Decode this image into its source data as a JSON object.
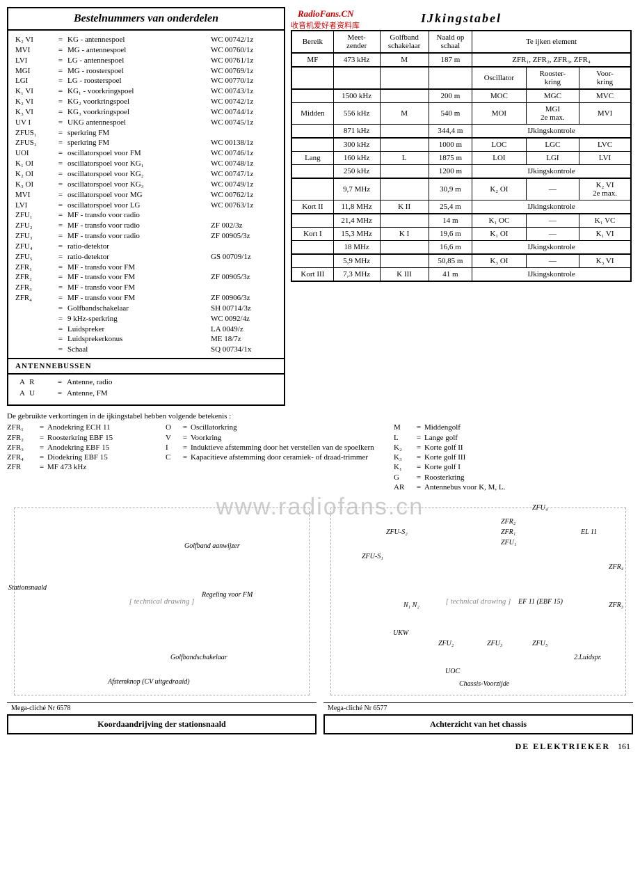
{
  "left": {
    "title": "Bestelnummers van onderdelen",
    "rows": [
      {
        "c1": "K₂ VI",
        "c2": "KG - antennespoel",
        "c3": "WC 00742/1z"
      },
      {
        "c1": "MVI",
        "c2": "MG - antennespoel",
        "c3": "WC 00760/1z"
      },
      {
        "c1": "LVI",
        "c2": "LG - antennespoel",
        "c3": "WC 00761/1z"
      },
      {
        "c1": "MGI",
        "c2": "MG - roosterspoel",
        "c3": "WC 00769/1z"
      },
      {
        "c1": "LGI",
        "c2": "LG - roosterspoel",
        "c3": "WC 00770/1z"
      },
      {
        "c1": "K₁ VI",
        "c2": "KG₁ - voorkringspoel",
        "c3": "WC 00743/1z"
      },
      {
        "c1": "K₂ VI",
        "c2": "KG₂  voorkringspoel",
        "c3": "WC 00742/1z"
      },
      {
        "c1": "K₃ VI",
        "c2": "KG₃  voorkringspoel",
        "c3": "WC 00744/1z"
      },
      {
        "c1": "UV I",
        "c2": "UKG  antennespoel",
        "c3": "WC 00745/1z"
      },
      {
        "c1": "ZFUS₁",
        "c2": "sperkring  FM",
        "c3": ""
      },
      {
        "c1": "ZFUS₂",
        "c2": "sperkring  FM",
        "c3": "WC 00138/1z"
      },
      {
        "c1": "UOI",
        "c2": "oscillatorspoel  voor FM",
        "c3": "WC 00746/1z"
      },
      {
        "c1": "K₁ OI",
        "c2": "oscillatorspoel  voor KG₁",
        "c3": "WC 00748/1z"
      },
      {
        "c1": "K₂ OI",
        "c2": "oscillatorspoel  voor KG₂",
        "c3": "WC 00747/1z"
      },
      {
        "c1": "K₃ OI",
        "c2": "oscillatorspoel  voor KG₃",
        "c3": "WC 00749/1z"
      },
      {
        "c1": "MVI",
        "c2": "oscillatorspoel  voor MG",
        "c3": "WC 00762/1z"
      },
      {
        "c1": "LVI",
        "c2": "oscillatorspoel  voor LG",
        "c3": "WC 00763/1z"
      },
      {
        "c1": "ZFU₁",
        "c2": "MF - transfo voor radio",
        "c3": ""
      },
      {
        "c1": "ZFU₂",
        "c2": "MF - transfo voor radio",
        "c3": "ZF    002/3z"
      },
      {
        "c1": "ZFU₃",
        "c2": "MF - transfo voor radio",
        "c3": "ZF 00905/3z"
      },
      {
        "c1": "ZFU₄",
        "c2": "ratio-detektor",
        "c3": ""
      },
      {
        "c1": "ZFU₅",
        "c2": "ratio-detektor",
        "c3": "GS 00709/1z"
      },
      {
        "c1": "ZFR₁",
        "c2": "MF - transfo voor FM",
        "c3": ""
      },
      {
        "c1": "ZFR₂",
        "c2": "MF - transfo voor FM",
        "c3": "ZF 00905/3z"
      },
      {
        "c1": "ZFR₃",
        "c2": "MF - transfo voor FM",
        "c3": ""
      },
      {
        "c1": "ZFR₄",
        "c2": "MF - transfo voor FM",
        "c3": "ZF 00906/3z"
      },
      {
        "c1": "",
        "c2": "Golfbandschakelaar",
        "c3": "SH 00714/3z"
      },
      {
        "c1": "",
        "c2": "9  kHz-sperkring",
        "c3": "WC  0092/4z"
      },
      {
        "c1": "",
        "c2": "Luidspreker",
        "c3": "LA  0049/z"
      },
      {
        "c1": "",
        "c2": "Luidsprekerkonus",
        "c3": "ME     18/7z"
      },
      {
        "c1": "",
        "c2": "Schaal",
        "c3": "SQ 00734/1x"
      }
    ],
    "sub_title": "ANTENNEBUSSEN",
    "antenne": [
      {
        "c1": "A R",
        "c2": "Antenne, radio"
      },
      {
        "c1": "A U",
        "c2": "Antenne, FM"
      }
    ]
  },
  "right": {
    "title": "IJkingstabel",
    "watermark1": "RadioFans.CN",
    "watermark2": "收音机爱好者资料库",
    "headers": {
      "bereik": "Bereik",
      "meet": "Meet-\nzender",
      "golf": "Golfband\nschakelaar",
      "naald": "Naald op\nschaal",
      "element": "Te ijken element",
      "osc": "Oscillator",
      "rooster": "Rooster-\nkring",
      "voor": "Voor-\nkring"
    },
    "rows": [
      {
        "bereik": "MF",
        "meet": "473  kHz",
        "golf": "M",
        "naald": "187 m",
        "e": "ZFR₁,  ZFR₂,  ZFR₃,  ZFR₄",
        "span": 3,
        "sec": true
      },
      {
        "bereik": "",
        "meet": "1500  kHz",
        "golf": "",
        "naald": "200 m",
        "o": "MOC",
        "r": "MGC",
        "v": "MVC",
        "mid_first": true
      },
      {
        "bereik": "Midden",
        "meet": "556  kHz",
        "golf": "M",
        "naald": "540 m",
        "o": "MOI",
        "r": "MGI\n2e  max.",
        "v": "MVI"
      },
      {
        "bereik": "",
        "meet": "871  kHz",
        "golf": "",
        "naald": "344,4 m",
        "e": "IJkingskontrole",
        "span": 3,
        "sec": true
      },
      {
        "bereik": "",
        "meet": "300  kHz",
        "golf": "",
        "naald": "1000 m",
        "o": "LOC",
        "r": "LGC",
        "v": "LVC",
        "lang_first": true
      },
      {
        "bereik": "Lang",
        "meet": "160  kHz",
        "golf": "L",
        "naald": "1875 m",
        "o": "LOI",
        "r": "LGI",
        "v": "LVI"
      },
      {
        "bereik": "",
        "meet": "250  kHz",
        "golf": "",
        "naald": "1200 m",
        "e": "IJkingskontrole",
        "span": 3,
        "sec": true
      },
      {
        "bereik": "",
        "meet": "9,7  MHz",
        "golf": "",
        "naald": "30,9 m",
        "o": "K₂ OI",
        "r": "—",
        "v": "K₂ VI\n2e  max.",
        "k2_first": true
      },
      {
        "bereik": "Kort II",
        "meet": "11,8  MHz",
        "golf": "K II",
        "naald": "25,4 m",
        "e": "IJkingskontrole",
        "span": 3,
        "sec": true
      },
      {
        "bereik": "",
        "meet": "21,4  MHz",
        "golf": "",
        "naald": "14 m",
        "o": "K₁ OC",
        "r": "—",
        "v": "K₁ VC",
        "k1_first": true
      },
      {
        "bereik": "Kort I",
        "meet": "15,3  MHz",
        "golf": "K I",
        "naald": "19,6 m",
        "o": "K₁ OI",
        "r": "—",
        "v": "K₁ VI"
      },
      {
        "bereik": "",
        "meet": "18    MHz",
        "golf": "",
        "naald": "16,6 m",
        "e": "IJkingskontrole",
        "span": 3,
        "sec": true
      },
      {
        "bereik": "",
        "meet": "5,9  MHz",
        "golf": "",
        "naald": "50,85 m",
        "o": "K₃ OI",
        "r": "—",
        "v": "K₃ VI",
        "k3_first": true
      },
      {
        "bereik": "Kort III",
        "meet": "7,3  MHz",
        "golf": "K III",
        "naald": "41 m",
        "e": "IJkingskontrole",
        "span": 3,
        "sec": true
      }
    ]
  },
  "abbrev": {
    "intro": "De gebruikte verkortingen in de ijkingstabel hebben volgende betekenis :",
    "col1": [
      {
        "k": "ZFR₁",
        "v": "Anodekring ECH 11"
      },
      {
        "k": "ZFR₂",
        "v": "Roosterkring  EBF 15"
      },
      {
        "k": "ZFR₃",
        "v": "Anodekring  EBF 15"
      },
      {
        "k": "ZFR₄",
        "v": "Diodekring  EBF 15"
      },
      {
        "k": "ZFR",
        "v": "MF 473 kHz"
      }
    ],
    "col2": [
      {
        "k": "O",
        "v": "Oscillatorkring"
      },
      {
        "k": "V",
        "v": "Voorkring"
      },
      {
        "k": "I",
        "v": "Induktieve afstemming door het verstellen van de spoelkern"
      },
      {
        "k": "C",
        "v": "Kapacitieve afstemming door ceramiek- of draad-trimmer"
      }
    ],
    "col3": [
      {
        "k": "M",
        "v": "Middengolf"
      },
      {
        "k": "L",
        "v": "Lange golf"
      },
      {
        "k": "K₂",
        "v": "Korte golf II"
      },
      {
        "k": "K₃",
        "v": "Korte golf III"
      },
      {
        "k": "K₁",
        "v": "Korte golf I"
      },
      {
        "k": "G",
        "v": "Roosterkring"
      },
      {
        "k": "AR",
        "v": "Antennebus voor K, M, L."
      }
    ]
  },
  "diagrams": {
    "watermark": "www.radiofans.cn",
    "left": {
      "note": "Mega-cliché Nr 6578",
      "caption": "Koordaandrijving der stationsnaald",
      "labels": [
        "Stationsnaald",
        "Golfband aanwijzer",
        "Regeling voor FM",
        "Golfbandschakelaar",
        "Afstemknop (CV uitgedraaid)"
      ]
    },
    "right": {
      "note": "Mega-cliché Nr 6577",
      "caption": "Achterzicht van het chassis",
      "labels": [
        "ZFU₄",
        "ZFR₂",
        "ZFR₁",
        "ZFU₁",
        "EL 11",
        "ZFR₄",
        "ZFR₃",
        "ZFU-S₂",
        "ZFU-S₁",
        "N₁ N₂",
        "UKW",
        "ZFU₂",
        "ZFU₃",
        "ZFU₅",
        "2.Luidspr.",
        "UOC",
        "Chassis-Voorzijde",
        "EF 11 (EBF 15)"
      ]
    }
  },
  "footer": {
    "mag": "DE  ELEKTRIEKER",
    "page": "161"
  }
}
